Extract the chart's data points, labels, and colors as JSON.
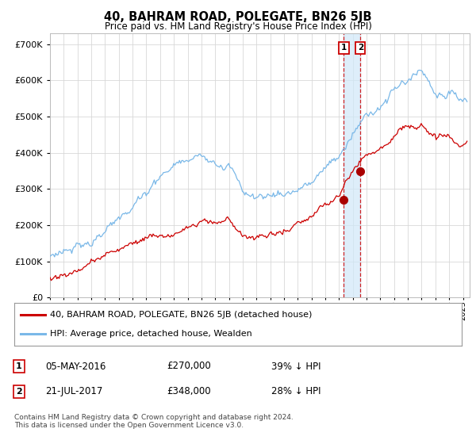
{
  "title": "40, BAHRAM ROAD, POLEGATE, BN26 5JB",
  "subtitle": "Price paid vs. HM Land Registry's House Price Index (HPI)",
  "ytick_values": [
    0,
    100000,
    200000,
    300000,
    400000,
    500000,
    600000,
    700000
  ],
  "ylim": [
    0,
    730000
  ],
  "xlim_start": 1995.0,
  "xlim_end": 2025.5,
  "hpi_color": "#7ab8e8",
  "price_color": "#cc0000",
  "dot_color": "#aa0000",
  "shade_color": "#d0e8f8",
  "transaction1_date": 2016.35,
  "transaction1_price": 270000,
  "transaction2_date": 2017.55,
  "transaction2_price": 348000,
  "legend_label1": "40, BAHRAM ROAD, POLEGATE, BN26 5JB (detached house)",
  "legend_label2": "HPI: Average price, detached house, Wealden",
  "table_row1": [
    "1",
    "05-MAY-2016",
    "£270,000",
    "39% ↓ HPI"
  ],
  "table_row2": [
    "2",
    "21-JUL-2017",
    "£348,000",
    "28% ↓ HPI"
  ],
  "footer": "Contains HM Land Registry data © Crown copyright and database right 2024.\nThis data is licensed under the Open Government Licence v3.0.",
  "background_color": "#ffffff",
  "grid_color": "#d8d8d8"
}
